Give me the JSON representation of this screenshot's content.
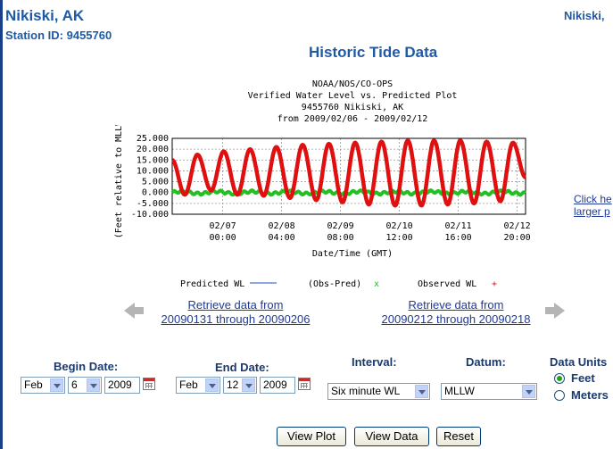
{
  "header": {
    "station_name": "Nikiski, AK",
    "station_id": "Station ID: 9455760",
    "station_name_right": "Nikiski,",
    "page_title": "Historic Tide Data"
  },
  "chart_data": {
    "type": "line",
    "header_lines": [
      "NOAA/NOS/CO-OPS",
      "Verified  Water Level vs. Predicted Plot",
      "9455760 Nikiski, AK",
      "from 2009/02/06 - 2009/02/12"
    ],
    "ylabel": "(Feet relative to MLLW)",
    "xlabel": "Date/Time (GMT)",
    "ylim": [
      -10,
      25
    ],
    "yticks": [
      "25.000",
      "20.000",
      "15.000",
      "10.000",
      "5.000",
      "0.000",
      "-5.000",
      "-10.000"
    ],
    "x_ticks": [
      {
        "date": "02/07",
        "time": "00:00",
        "hours": 24
      },
      {
        "date": "02/08",
        "time": "04:00",
        "hours": 52
      },
      {
        "date": "02/09",
        "time": "08:00",
        "hours": 80
      },
      {
        "date": "02/10",
        "time": "12:00",
        "hours": 108
      },
      {
        "date": "02/11",
        "time": "16:00",
        "hours": 136
      },
      {
        "date": "02/12",
        "time": "20:00",
        "hours": 164
      }
    ],
    "x_range_hours": [
      0,
      168
    ],
    "grid": true,
    "observed_extrema": [
      {
        "hours": 0,
        "value": 15
      },
      {
        "hours": 6,
        "value": -1
      },
      {
        "hours": 12,
        "value": 17.5
      },
      {
        "hours": 18.5,
        "value": 1
      },
      {
        "hours": 24.5,
        "value": 19
      },
      {
        "hours": 31,
        "value": -1
      },
      {
        "hours": 37,
        "value": 20
      },
      {
        "hours": 43.5,
        "value": -1.5
      },
      {
        "hours": 49.5,
        "value": 21
      },
      {
        "hours": 56,
        "value": -2.5
      },
      {
        "hours": 62,
        "value": 22
      },
      {
        "hours": 68.5,
        "value": -3.5
      },
      {
        "hours": 74.5,
        "value": 22.5
      },
      {
        "hours": 81,
        "value": -4.5
      },
      {
        "hours": 87,
        "value": 23
      },
      {
        "hours": 93.5,
        "value": -5.5
      },
      {
        "hours": 99.5,
        "value": 23.5
      },
      {
        "hours": 106,
        "value": -6
      },
      {
        "hours": 112,
        "value": 24
      },
      {
        "hours": 118.5,
        "value": -6
      },
      {
        "hours": 124.5,
        "value": 24
      },
      {
        "hours": 131,
        "value": -5.5
      },
      {
        "hours": 137,
        "value": 24
      },
      {
        "hours": 143.5,
        "value": -5
      },
      {
        "hours": 149.5,
        "value": 23.5
      },
      {
        "hours": 156,
        "value": -4
      },
      {
        "hours": 162,
        "value": 23
      },
      {
        "hours": 168,
        "value": 7
      }
    ],
    "obs_minus_pred_level": 0,
    "series": [
      {
        "name": "Predicted WL",
        "color": "#1f4fbf",
        "marker": "line"
      },
      {
        "name": "(Obs-Pred)",
        "color": "#22c022",
        "marker": "x"
      },
      {
        "name": "Observed WL",
        "color": "#e01010",
        "marker": "+"
      }
    ]
  },
  "navigation": {
    "prev": {
      "line1": "Retrieve data from",
      "line2": "20090131 through 20090206"
    },
    "next": {
      "line1": "Retrieve data from",
      "line2": "20090212 through 20090218"
    },
    "side_link": {
      "line1": "Click he",
      "line2": "larger p"
    }
  },
  "form": {
    "begin_label": "Begin Date:",
    "begin_month": "Feb",
    "begin_day": "6",
    "begin_year": "2009",
    "end_label": "End Date:",
    "end_month": "Feb",
    "end_day": "12",
    "end_year": "2009",
    "interval_label": "Interval:",
    "interval_value": "Six minute WL",
    "datum_label": "Datum:",
    "datum_value": "MLLW",
    "units_label": "Data Units",
    "units_feet": "Feet",
    "units_meters": "Meters"
  },
  "buttons": {
    "view_plot": "View Plot",
    "view_data": "View Data",
    "reset": "Reset"
  },
  "colors": {
    "title_blue": "#1f5aa6",
    "link_blue": "#1f3a9a",
    "observed": "#e01010",
    "residual": "#22c022"
  }
}
